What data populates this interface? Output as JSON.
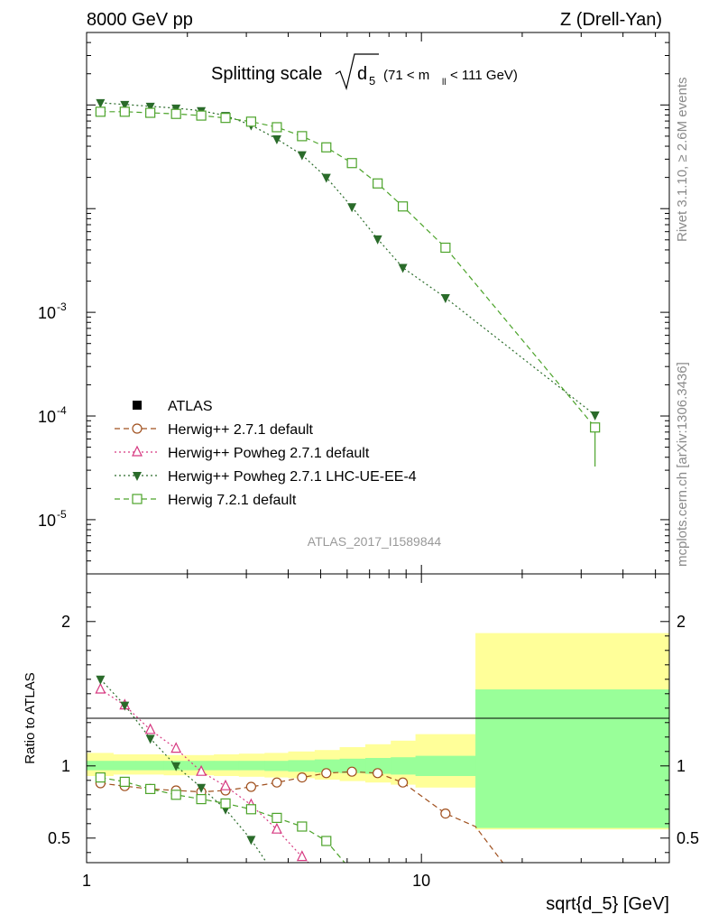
{
  "header": {
    "left": "8000 GeV pp",
    "right": "Z (Drell-Yan)"
  },
  "side_labels": {
    "rivet": "Rivet 3.1.10, ≥ 2.6M events",
    "mcplots": "mcplots.cern.ch [arXiv:1306.3436]"
  },
  "chart_data": [
    {
      "type": "scatter",
      "panel": "main",
      "title_main": "Splitting scale",
      "title_sqrt": "d",
      "title_sub": "5",
      "title_range": "(71 < m",
      "title_range_sub": "ll",
      "title_range_end": " < 111 GeV)",
      "analysis_id": "ATLAS_2017_I1589844",
      "xscale": "log",
      "yscale": "log",
      "xlim": [
        1,
        55
      ],
      "ylim": [
        3e-06,
        0.5
      ],
      "y_tick_labels": [
        "10",
        "10",
        "10"
      ],
      "y_tick_exponents": [
        "-3",
        "-4",
        "-5"
      ],
      "y_tick_values": [
        0.001,
        0.0001,
        1e-05
      ],
      "legend_position": "middle-left",
      "legend": [
        {
          "label": "ATLAS",
          "marker": "square-filled",
          "color": "#000000",
          "line": "none"
        },
        {
          "label": "Herwig++ 2.7.1 default",
          "marker": "circle-open",
          "color": "#a0501e",
          "line": "dashed"
        },
        {
          "label": "Herwig++ Powheg 2.7.1 default",
          "marker": "triangle-open",
          "color": "#d63880",
          "line": "dotted"
        },
        {
          "label": "Herwig++ Powheg 2.7.1 LHC-UE-EE-4",
          "marker": "triangle-down-filled",
          "color": "#2a6b2a",
          "line": "dotted"
        },
        {
          "label": "Herwig 7.2.1 default",
          "marker": "square-open",
          "color": "#4ca32a",
          "line": "dashed"
        }
      ],
      "series": [
        {
          "name": "Herwig++ Powheg 2.7.1 LHC-UE-EE-4",
          "x": [
            1.1,
            1.3,
            1.55,
            1.85,
            2.2,
            2.6,
            3.1,
            3.7,
            4.4,
            5.2,
            6.2,
            7.4,
            8.8,
            11.8,
            33
          ],
          "y": [
            0.105,
            0.101,
            0.097,
            0.093,
            0.088,
            0.079,
            0.064,
            0.047,
            0.033,
            0.02,
            0.0104,
            0.0051,
            0.0027,
            0.00138,
            0.000102
          ]
        },
        {
          "name": "Herwig 7.2.1 default",
          "x": [
            1.1,
            1.3,
            1.55,
            1.85,
            2.2,
            2.6,
            3.1,
            3.7,
            4.4,
            5.2,
            6.2,
            7.4,
            8.8,
            11.8,
            33
          ],
          "y": [
            0.086,
            0.086,
            0.084,
            0.082,
            0.079,
            0.075,
            0.069,
            0.061,
            0.05,
            0.039,
            0.0275,
            0.0175,
            0.0105,
            0.0042,
            7.75e-05
          ]
        }
      ]
    },
    {
      "type": "line",
      "panel": "ratio",
      "ylabel": "Ratio to ATLAS",
      "xlabel": "sqrt{d_5} [GeV]",
      "xscale": "log",
      "xlim": [
        1,
        55
      ],
      "ylim": [
        0.33,
        2.33
      ],
      "x_tick_labels": [
        "1",
        "10"
      ],
      "x_tick_values": [
        1,
        10
      ],
      "y_tick_labels": [
        "0.5",
        "1",
        "2"
      ],
      "y_tick_values": [
        0.5,
        1,
        2
      ],
      "band_edges": [
        1,
        1.2,
        1.4,
        1.7,
        2.0,
        2.4,
        2.85,
        3.4,
        4.0,
        4.8,
        5.7,
        6.8,
        8.1,
        9.6,
        14.5,
        55
      ],
      "band_inner_lower": [
        0.97,
        0.97,
        0.97,
        0.97,
        0.97,
        0.97,
        0.97,
        0.965,
        0.96,
        0.955,
        0.95,
        0.945,
        0.94,
        0.93,
        0.57
      ],
      "band_inner_upper": [
        1.035,
        1.035,
        1.035,
        1.035,
        1.035,
        1.035,
        1.035,
        1.035,
        1.04,
        1.045,
        1.05,
        1.055,
        1.06,
        1.07,
        1.53
      ],
      "band_outer_lower": [
        0.93,
        0.94,
        0.94,
        0.935,
        0.935,
        0.93,
        0.925,
        0.92,
        0.915,
        0.905,
        0.895,
        0.885,
        0.87,
        0.85,
        0.56
      ],
      "band_outer_upper": [
        1.09,
        1.08,
        1.08,
        1.075,
        1.075,
        1.08,
        1.085,
        1.09,
        1.1,
        1.11,
        1.13,
        1.15,
        1.175,
        1.22,
        1.92
      ],
      "series": [
        {
          "name": "Herwig++ 2.7.1 default",
          "x": [
            1.1,
            1.3,
            1.55,
            1.85,
            2.2,
            2.6,
            3.1,
            3.7,
            4.4,
            5.2,
            6.2,
            7.4,
            8.8,
            11.8
          ],
          "y": [
            0.88,
            0.86,
            0.84,
            0.83,
            0.82,
            0.83,
            0.855,
            0.885,
            0.92,
            0.95,
            0.96,
            0.95,
            0.885,
            0.67
          ],
          "tail": [
            [
              14.5,
              0.58
            ],
            [
              17.5,
              0.33
            ]
          ]
        },
        {
          "name": "Herwig++ Powheg 2.7.1 default",
          "x": [
            1.1,
            1.3,
            1.55,
            1.85,
            2.2,
            2.6,
            3.1,
            3.7,
            4.4
          ],
          "y": [
            1.53,
            1.42,
            1.25,
            1.12,
            0.96,
            0.86,
            0.73,
            0.56,
            0.37
          ],
          "tail": [
            [
              4.6,
              0.33
            ]
          ]
        },
        {
          "name": "Herwig++ Powheg 2.7.1 LHC-UE-EE-4",
          "x": [
            1.1,
            1.3,
            1.55,
            1.85,
            2.2,
            2.6,
            3.1
          ],
          "y": [
            1.6,
            1.42,
            1.19,
            1.0,
            0.85,
            0.7,
            0.49
          ],
          "tail": [
            [
              3.45,
              0.33
            ]
          ]
        },
        {
          "name": "Herwig 7.2.1 default",
          "x": [
            1.1,
            1.3,
            1.55,
            1.85,
            2.2,
            2.6,
            3.1,
            3.7,
            4.4,
            5.2
          ],
          "y": [
            0.92,
            0.89,
            0.84,
            0.8,
            0.77,
            0.74,
            0.7,
            0.64,
            0.58,
            0.48
          ],
          "tail": [
            [
              5.9,
              0.33
            ]
          ]
        }
      ]
    }
  ]
}
